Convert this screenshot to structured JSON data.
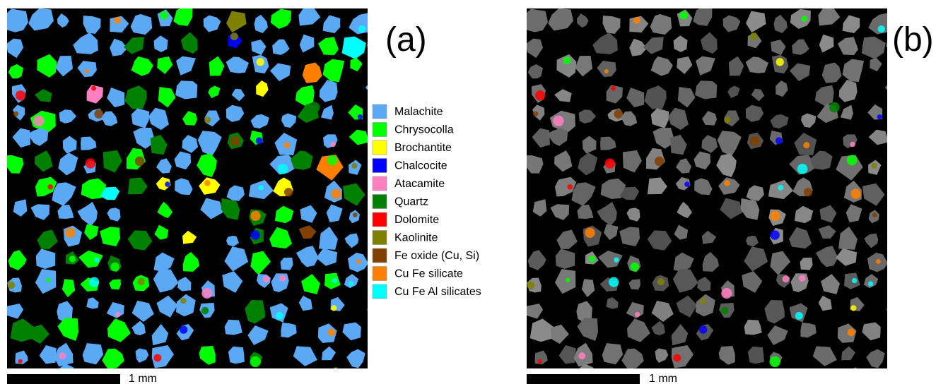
{
  "panels": [
    {
      "label": "(a)",
      "scale_bar": "1 mm"
    },
    {
      "label": "(b)",
      "scale_bar": "1 mm"
    }
  ],
  "legend": [
    {
      "name": "Malachite",
      "color": "#5ba8f5"
    },
    {
      "name": "Chrysocolla",
      "color": "#00ff00"
    },
    {
      "name": "Brochantite",
      "color": "#ffff00"
    },
    {
      "name": "Chalcocite",
      "color": "#0000ff"
    },
    {
      "name": "Atacamite",
      "color": "#ff80c0"
    },
    {
      "name": "Quartz",
      "color": "#008000"
    },
    {
      "name": "Dolomite",
      "color": "#ff0000"
    },
    {
      "name": "Kaolinite",
      "color": "#808000"
    },
    {
      "name": "Fe oxide (Cu, Si)",
      "color": "#804000"
    },
    {
      "name": "Cu Fe silicate",
      "color": "#ff8000"
    },
    {
      "name": "Cu Fe Al silicates",
      "color": "#00ffff"
    }
  ]
}
